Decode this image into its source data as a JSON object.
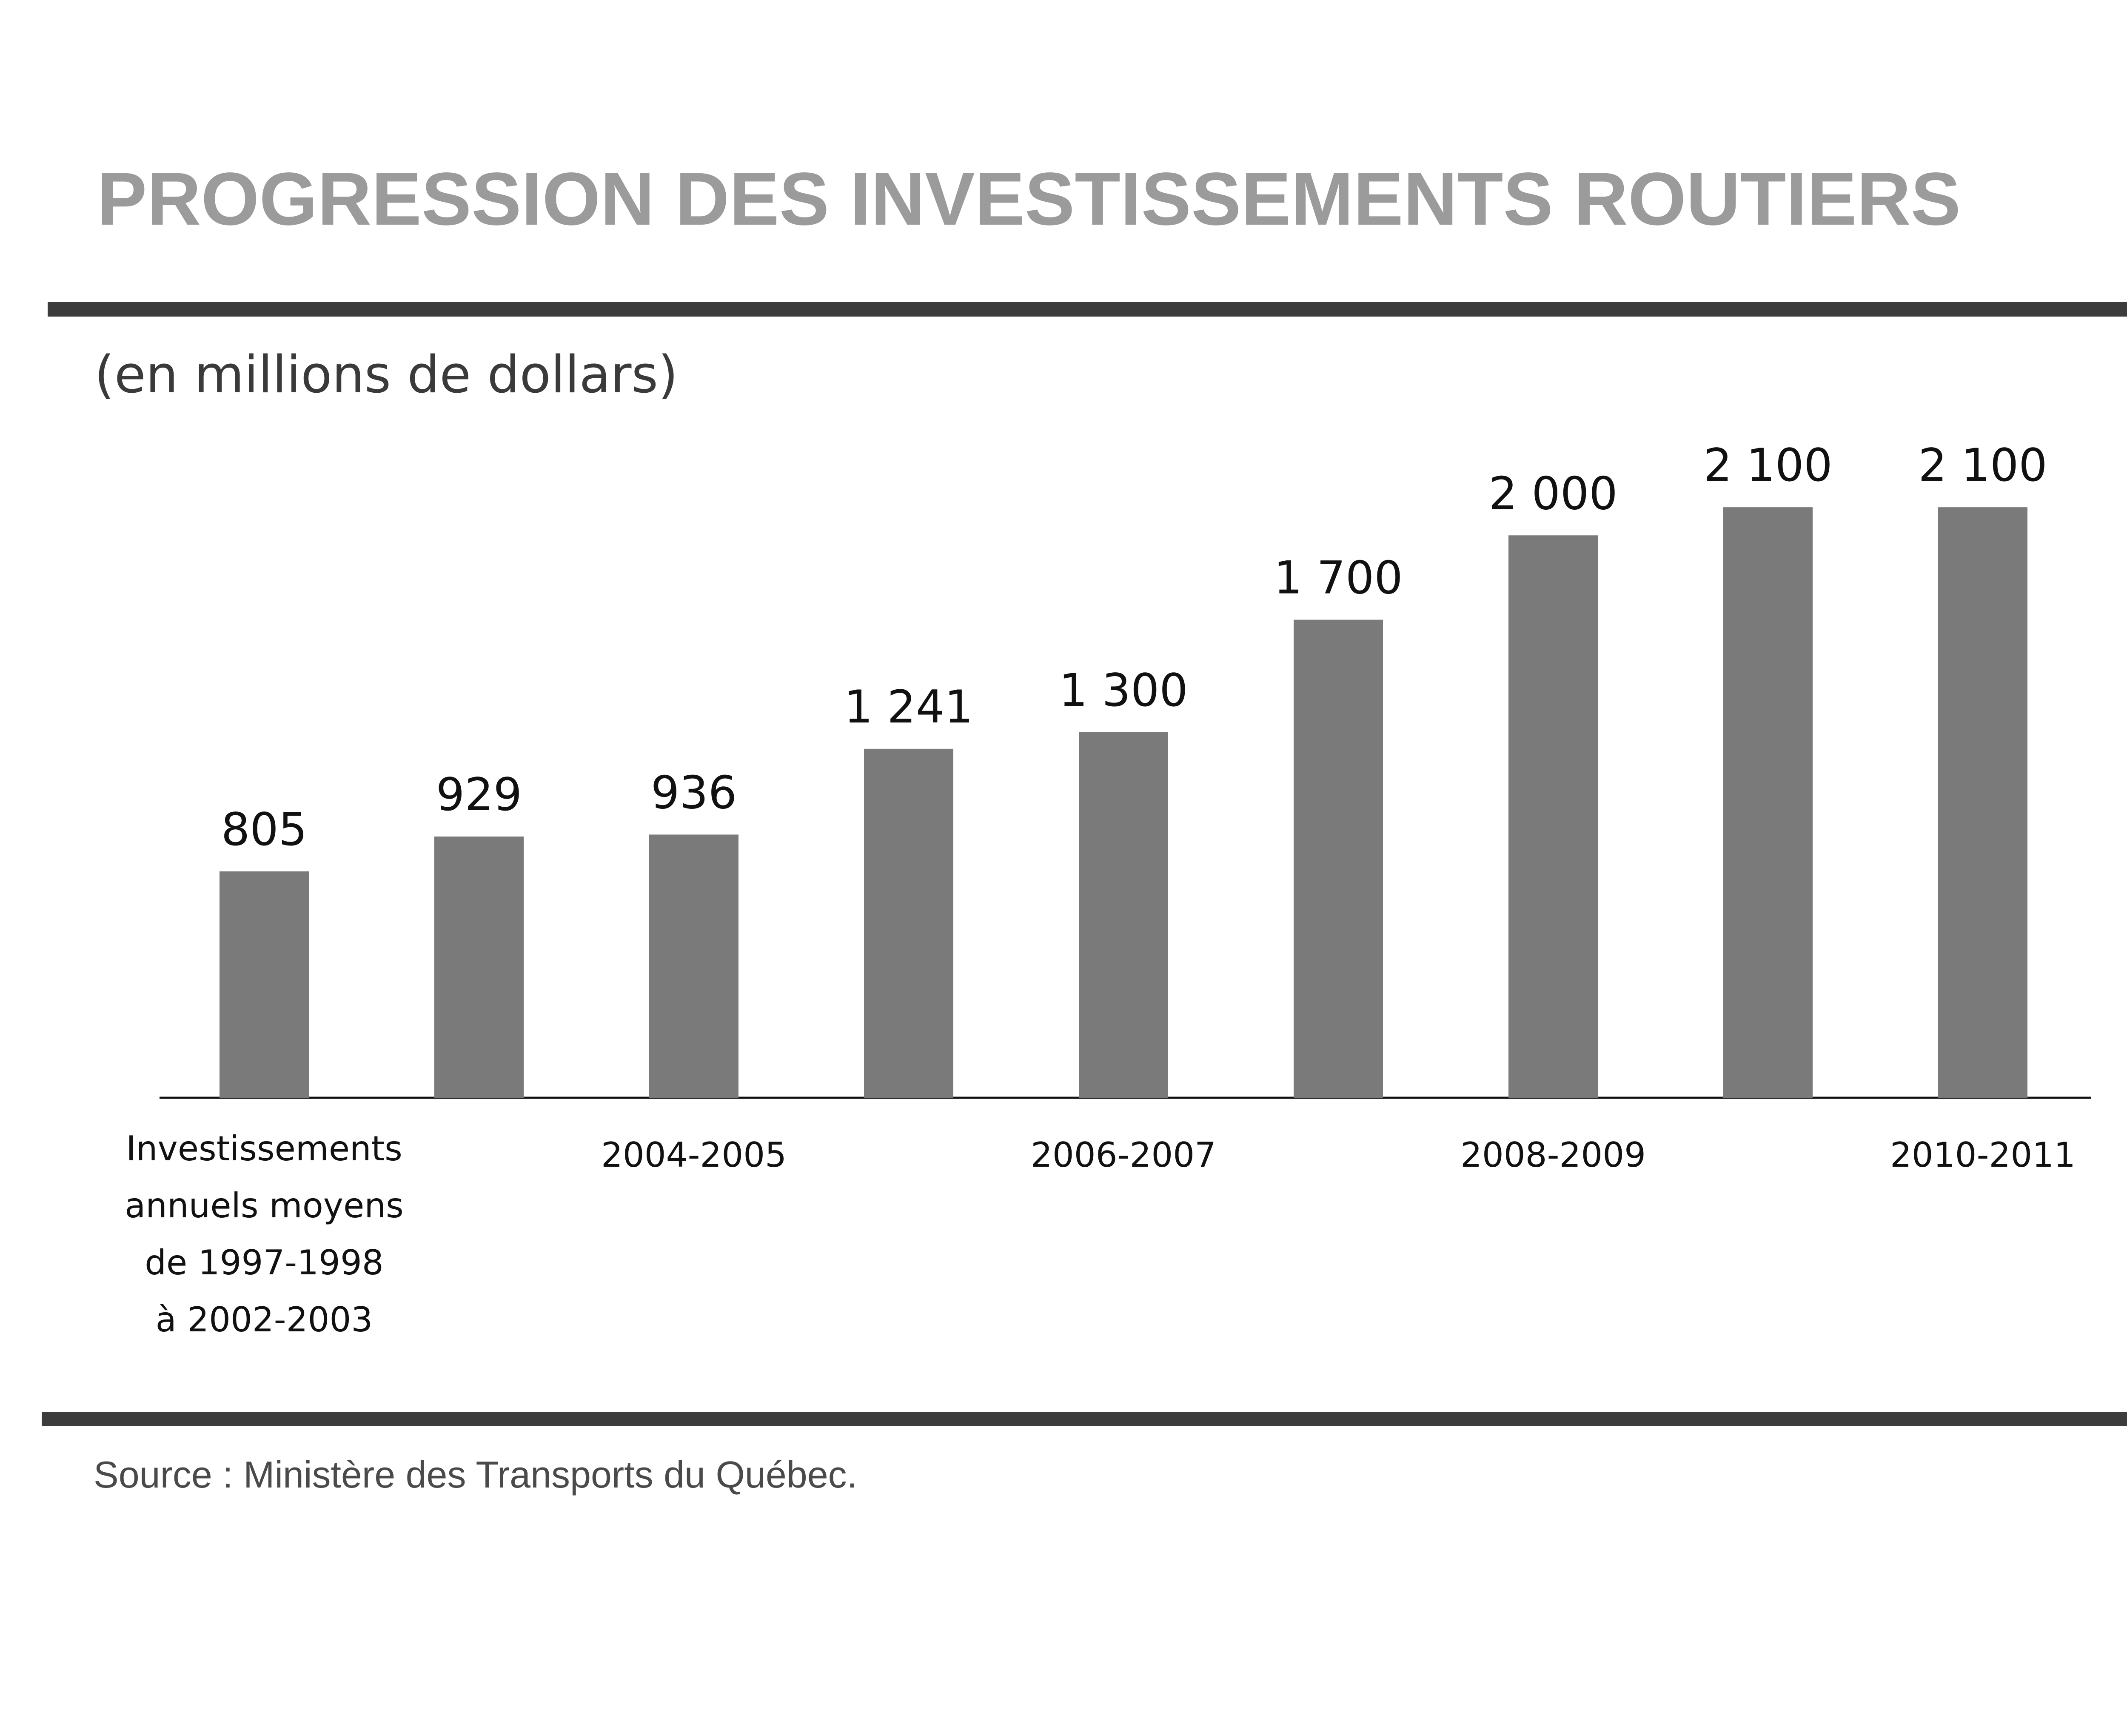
{
  "page": {
    "title": "PROGRESSION DES INVESTISSEMENTS ROUTIERS",
    "subtitle": "(en millions de dollars)",
    "source": "Source :  Ministère des Transports du Québec."
  },
  "colors": {
    "bar": "#7a7a7a",
    "title": "#9b9b9b",
    "rule": "#3c3c3c",
    "axis": "#111111"
  },
  "chart_data": {
    "type": "bar",
    "title": "PROGRESSION DES INVESTISSEMENTS ROUTIERS",
    "ylabel": "(en millions de dollars)",
    "xlabel": "",
    "ylim": [
      0,
      2300
    ],
    "grid": false,
    "legend": "none",
    "values": [
      805,
      929,
      936,
      1241,
      1300,
      1700,
      2000,
      2100,
      2100
    ],
    "value_labels": [
      "805",
      "929",
      "936",
      "1 241",
      "1 300",
      "1 700",
      "2 000",
      "2 100",
      "2 100"
    ],
    "x_labels": [
      {
        "bar_index": 0,
        "lines": [
          "Investissements",
          "annuels moyens",
          "de 1997-1998",
          "à 2002-2003"
        ]
      },
      {
        "bar_index": 2,
        "lines": [
          "2004-2005"
        ]
      },
      {
        "bar_index": 4,
        "lines": [
          "2006-2007"
        ]
      },
      {
        "bar_index": 6,
        "lines": [
          "2008-2009"
        ]
      },
      {
        "bar_index": 8,
        "lines": [
          "2010-2011"
        ]
      }
    ]
  }
}
